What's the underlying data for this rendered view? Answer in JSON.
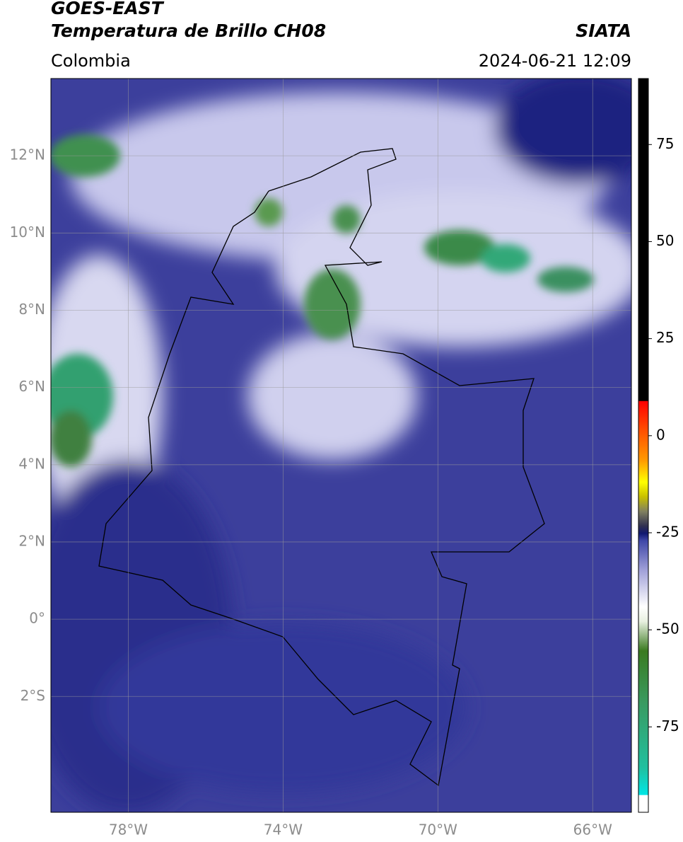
{
  "header": {
    "title_line1": "GOES-EAST",
    "title_line2": "Temperatura de Brillo CH08",
    "source": "SIATA",
    "region": "Colombia",
    "timestamp": "2024-06-21 12:09"
  },
  "map": {
    "lon_range": [
      -80,
      -65
    ],
    "lat_range": [
      -5,
      14
    ],
    "lat_ticks": [
      {
        "value": 12,
        "label": "12°N"
      },
      {
        "value": 10,
        "label": "10°N"
      },
      {
        "value": 8,
        "label": "8°N"
      },
      {
        "value": 6,
        "label": "6°N"
      },
      {
        "value": 4,
        "label": "4°N"
      },
      {
        "value": 2,
        "label": "2°N"
      },
      {
        "value": 0,
        "label": "0°"
      },
      {
        "value": -2,
        "label": "2°S"
      }
    ],
    "lon_ticks": [
      {
        "value": -78,
        "label": "78°W"
      },
      {
        "value": -74,
        "label": "74°W"
      },
      {
        "value": -70,
        "label": "70°W"
      },
      {
        "value": -66,
        "label": "66°W"
      }
    ]
  },
  "colorbar": {
    "range": [
      -97,
      92
    ],
    "ticks": [
      75,
      50,
      25,
      0,
      -25,
      -50,
      -75
    ]
  }
}
